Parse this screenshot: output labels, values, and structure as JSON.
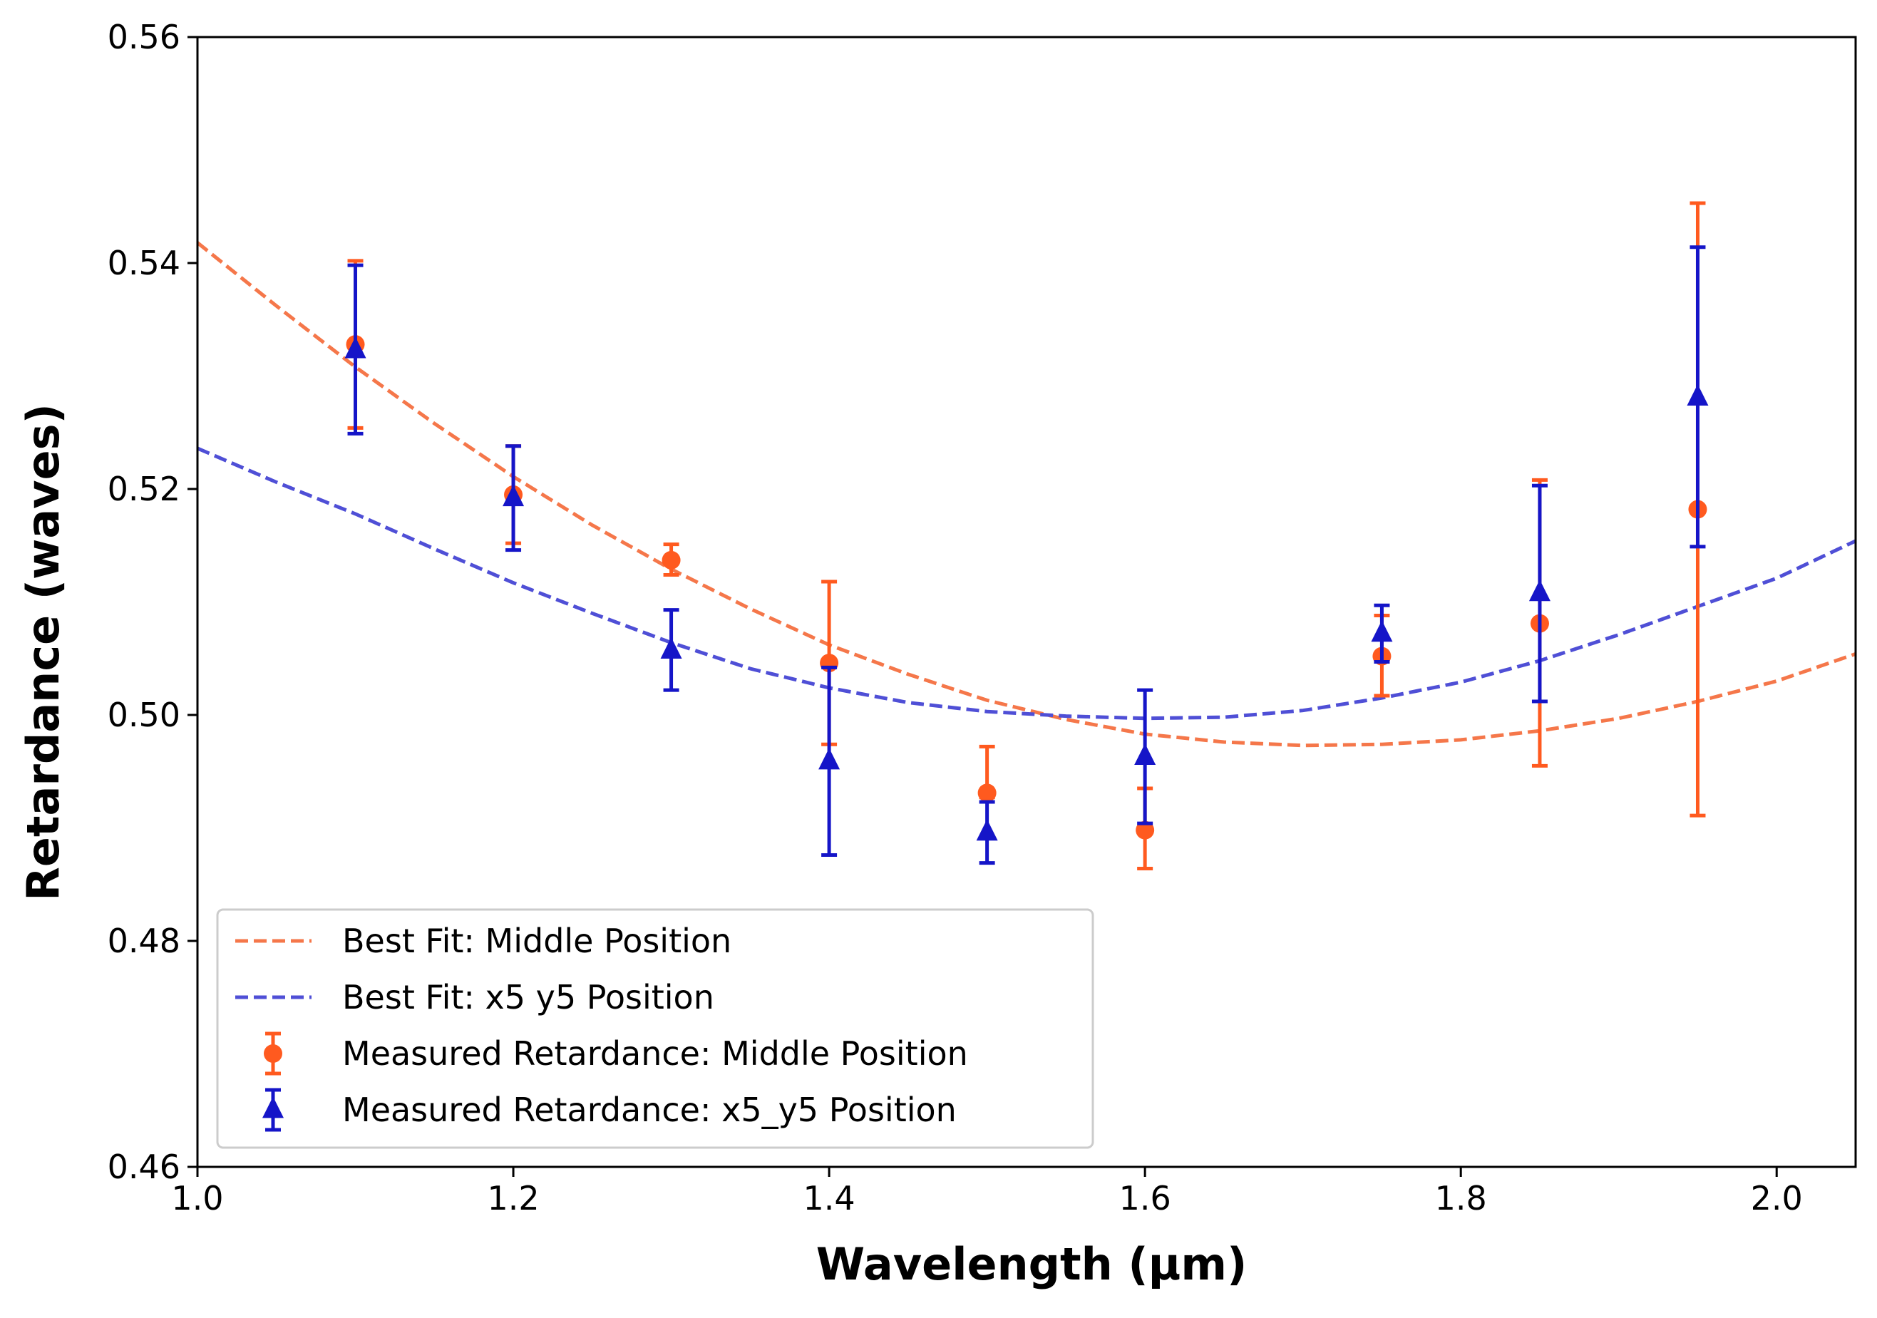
{
  "chart_data": {
    "type": "scatter",
    "title": "",
    "xlabel": "Wavelength (µm)",
    "ylabel": "Retardance (waves)",
    "xlim": [
      1.0,
      2.05
    ],
    "ylim": [
      0.46,
      0.56
    ],
    "xticks": [
      1.0,
      1.2,
      1.4,
      1.6,
      1.8,
      2.0
    ],
    "xtick_labels": [
      "1.0",
      "1.2",
      "1.4",
      "1.6",
      "1.8",
      "2.0"
    ],
    "yticks": [
      0.46,
      0.48,
      0.5,
      0.52,
      0.54,
      0.56
    ],
    "ytick_labels": [
      "0.46",
      "0.48",
      "0.50",
      "0.52",
      "0.54",
      "0.56"
    ],
    "grid": false,
    "legend_position": "lower-left",
    "series": [
      {
        "name": "Best Fit: Middle Position",
        "kind": "line",
        "style": "dashed",
        "color": "#F5774A",
        "x": [
          1.0,
          1.05,
          1.1,
          1.15,
          1.2,
          1.25,
          1.3,
          1.35,
          1.4,
          1.45,
          1.5,
          1.55,
          1.6,
          1.65,
          1.7,
          1.75,
          1.8,
          1.85,
          1.9,
          1.95,
          2.0,
          2.05
        ],
        "y": [
          0.5418,
          0.5362,
          0.5308,
          0.5258,
          0.5211,
          0.5168,
          0.5129,
          0.5094,
          0.5062,
          0.5036,
          0.5013,
          0.4996,
          0.4983,
          0.4976,
          0.4973,
          0.4974,
          0.4978,
          0.4986,
          0.4997,
          0.5012,
          0.503,
          0.5054
        ]
      },
      {
        "name": "Best Fit: x5 y5 Position",
        "kind": "line",
        "style": "dashed",
        "color": "#4F4FD6",
        "x": [
          1.0,
          1.05,
          1.1,
          1.15,
          1.2,
          1.25,
          1.3,
          1.35,
          1.4,
          1.45,
          1.5,
          1.55,
          1.6,
          1.65,
          1.7,
          1.75,
          1.8,
          1.85,
          1.9,
          1.95,
          2.0,
          2.05
        ],
        "y": [
          0.5236,
          0.5206,
          0.5178,
          0.5147,
          0.5117,
          0.509,
          0.5064,
          0.5041,
          0.5024,
          0.5011,
          0.5003,
          0.4999,
          0.4997,
          0.4998,
          0.5004,
          0.5015,
          0.5029,
          0.5048,
          0.5071,
          0.5096,
          0.5121,
          0.5154
        ]
      },
      {
        "name": "Measured Retardance: Middle Position",
        "kind": "errorbar",
        "marker": "circle",
        "color": "#FF5A1F",
        "x": [
          1.1,
          1.2,
          1.3,
          1.4,
          1.5,
          1.6,
          1.75,
          1.85,
          1.95
        ],
        "y": [
          0.5328,
          0.5195,
          0.5137,
          0.5046,
          0.4931,
          0.4898,
          0.5052,
          0.5081,
          0.5182
        ],
        "yerr_low": [
          0.5254,
          0.5152,
          0.5124,
          0.4974,
          0.4927,
          0.4864,
          0.5017,
          0.4955,
          0.4911
        ],
        "yerr_high": [
          0.5402,
          0.5238,
          0.5151,
          0.5118,
          0.4972,
          0.4935,
          0.5088,
          0.5208,
          0.5453
        ]
      },
      {
        "name": "Measured Retardance: x5_y5 Position",
        "kind": "errorbar",
        "marker": "triangle",
        "color": "#1515C8",
        "x": [
          1.1,
          1.2,
          1.3,
          1.4,
          1.5,
          1.6,
          1.75,
          1.85,
          1.95
        ],
        "y": [
          0.5323,
          0.5192,
          0.5057,
          0.4959,
          0.4896,
          0.4963,
          0.5072,
          0.5108,
          0.5281
        ],
        "yerr_low": [
          0.5249,
          0.5146,
          0.5022,
          0.4876,
          0.4869,
          0.4904,
          0.5047,
          0.5012,
          0.5149
        ],
        "yerr_high": [
          0.5398,
          0.5238,
          0.5093,
          0.5042,
          0.4923,
          0.5022,
          0.5097,
          0.5203,
          0.5414
        ]
      }
    ]
  }
}
